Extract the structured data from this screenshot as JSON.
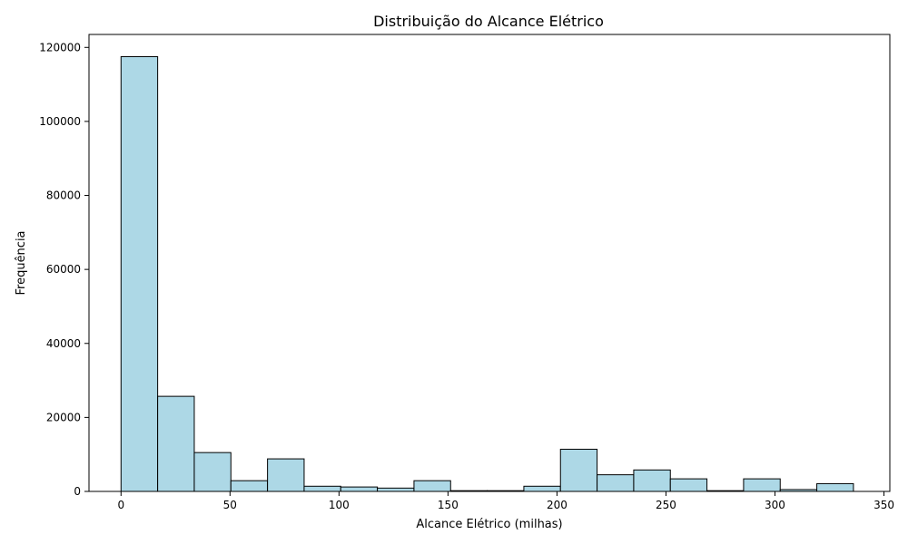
{
  "chart_data": {
    "type": "bar",
    "title": "Distribuição do Alcance Elétrico",
    "xlabel": "Alcance Elétrico (milhas)",
    "ylabel": "Frequência",
    "xlim": [
      -14.7,
      352.7
    ],
    "ylim": [
      0,
      123500
    ],
    "x_ticks": [
      0,
      50,
      100,
      150,
      200,
      250,
      300,
      350
    ],
    "y_ticks": [
      0,
      20000,
      40000,
      60000,
      80000,
      100000,
      120000
    ],
    "bin_edges": [
      0,
      16.8,
      33.6,
      50.4,
      67.2,
      84.0,
      100.8,
      117.6,
      134.4,
      151.2,
      168.0,
      184.8,
      201.6,
      218.4,
      235.2,
      252.0,
      268.8,
      285.6,
      302.4,
      319.2,
      336.0
    ],
    "values": [
      117500,
      25700,
      10500,
      2900,
      8800,
      1400,
      1200,
      900,
      2900,
      200,
      200,
      1400,
      11400,
      4500,
      5800,
      3400,
      200,
      3400,
      500,
      2100
    ],
    "bar_color": "#add8e6",
    "edge_color": "#000000",
    "grid": false
  }
}
